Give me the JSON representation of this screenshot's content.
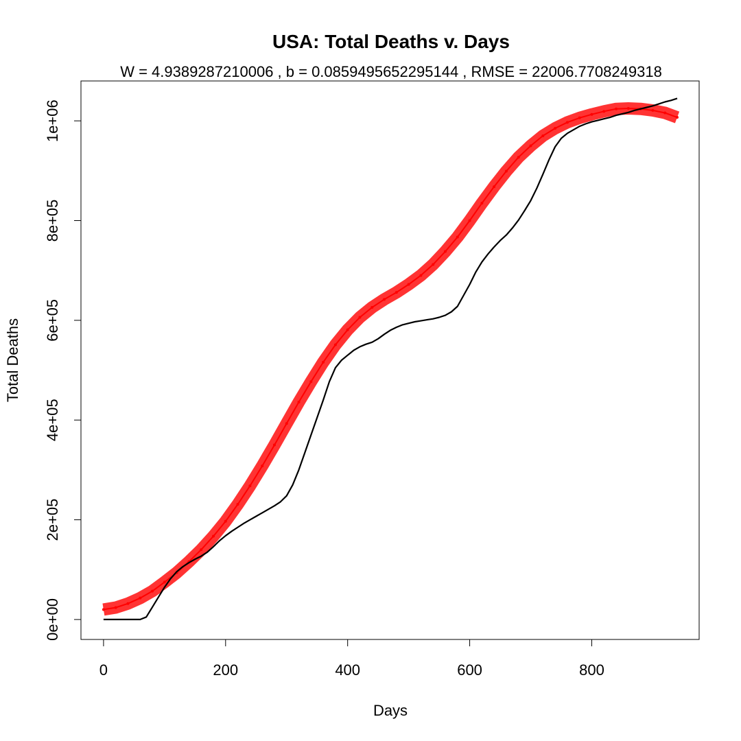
{
  "chart_data": {
    "type": "line",
    "title": "USA: Total Deaths v. Days",
    "subtitle": "W = 4.9389287210006 , b = 0.0859495652295144 , RMSE = 22006.7708249318",
    "xlabel": "Days",
    "ylabel": "Total Deaths",
    "xlim": [
      -37,
      976
    ],
    "ylim": [
      -40000,
      1080000
    ],
    "xticks": [
      0,
      200,
      400,
      600,
      800
    ],
    "xtick_labels": [
      "0",
      "200",
      "400",
      "600",
      "800"
    ],
    "yticks": [
      0,
      200000,
      400000,
      600000,
      800000,
      1000000
    ],
    "ytick_labels": [
      "0e+00",
      "2e+05",
      "4e+05",
      "6e+05",
      "8e+05",
      "1e+06"
    ],
    "grid": false,
    "series": [
      {
        "style": "line",
        "color": "#000000",
        "x": [
          0,
          40,
          60,
          70,
          80,
          90,
          100,
          110,
          120,
          130,
          140,
          150,
          160,
          170,
          180,
          190,
          200,
          210,
          220,
          230,
          240,
          250,
          260,
          270,
          280,
          290,
          300,
          310,
          320,
          330,
          340,
          350,
          360,
          370,
          380,
          390,
          400,
          410,
          420,
          430,
          440,
          450,
          460,
          470,
          480,
          490,
          500,
          510,
          520,
          530,
          540,
          550,
          560,
          570,
          580,
          590,
          600,
          610,
          620,
          630,
          640,
          650,
          660,
          670,
          680,
          690,
          700,
          710,
          720,
          730,
          740,
          750,
          760,
          770,
          780,
          790,
          800,
          810,
          820,
          830,
          840,
          850,
          860,
          870,
          880,
          890,
          900,
          910,
          920,
          930,
          940
        ],
        "y": [
          0,
          0,
          0,
          5000,
          25000,
          45000,
          65000,
          82000,
          96000,
          106000,
          114000,
          121000,
          127000,
          135000,
          146000,
          158000,
          168000,
          177000,
          185000,
          193000,
          200000,
          207000,
          214000,
          221000,
          228000,
          236000,
          248000,
          270000,
          300000,
          335000,
          370000,
          405000,
          440000,
          477000,
          505000,
          520000,
          530000,
          540000,
          547000,
          552000,
          556000,
          563000,
          572000,
          580000,
          586000,
          591000,
          594000,
          597000,
          599000,
          601000,
          603000,
          606000,
          610000,
          617000,
          628000,
          650000,
          672000,
          697000,
          717000,
          733000,
          747000,
          760000,
          771000,
          785000,
          801000,
          820000,
          840000,
          865000,
          893000,
          922000,
          948000,
          965000,
          975000,
          982000,
          989000,
          994000,
          998000,
          1001000,
          1004000,
          1007000,
          1011000,
          1014000,
          1017000,
          1021000,
          1024000,
          1027000,
          1030000,
          1034000,
          1038000,
          1041000,
          1045000
        ]
      },
      {
        "style": "thick-band",
        "color": "#ff0000",
        "x": [
          0,
          20,
          40,
          60,
          80,
          100,
          120,
          140,
          160,
          180,
          200,
          220,
          240,
          260,
          280,
          300,
          320,
          340,
          360,
          380,
          400,
          420,
          440,
          460,
          480,
          500,
          520,
          540,
          560,
          580,
          600,
          620,
          640,
          660,
          680,
          700,
          720,
          740,
          760,
          780,
          800,
          820,
          840,
          860,
          880,
          900,
          920,
          940
        ],
        "y": [
          20000,
          24000,
          32000,
          43000,
          57000,
          75000,
          94000,
          116000,
          140000,
          167000,
          197000,
          231000,
          268000,
          308000,
          350000,
          393000,
          436000,
          477000,
          516000,
          551000,
          581000,
          606000,
          626000,
          642000,
          656000,
          672000,
          690000,
          712000,
          738000,
          767000,
          800000,
          835000,
          868000,
          899000,
          927000,
          950000,
          970000,
          985000,
          997000,
          1006000,
          1013000,
          1019000,
          1024000,
          1025000,
          1024000,
          1021000,
          1016000,
          1007000
        ]
      }
    ]
  }
}
